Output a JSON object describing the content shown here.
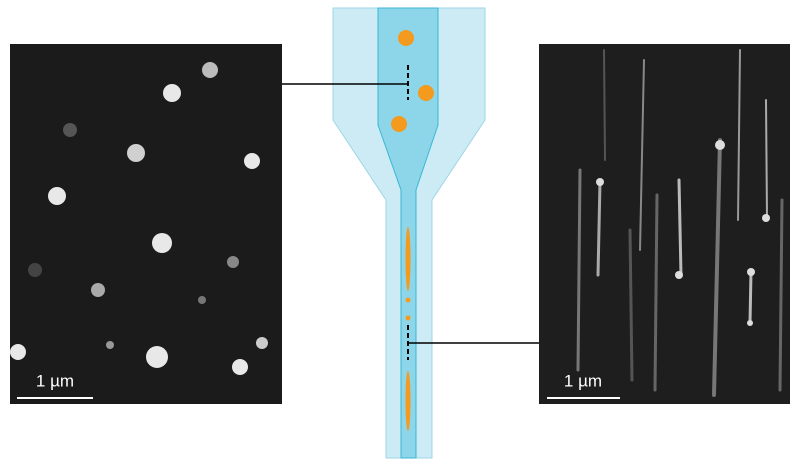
{
  "left_image": {
    "scale_label": "1 µm"
  },
  "right_image": {
    "scale_label": "1 µm"
  }
}
